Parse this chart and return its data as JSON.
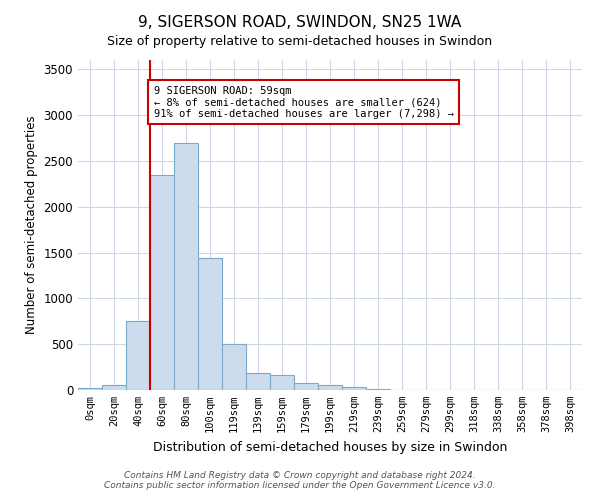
{
  "title": "9, SIGERSON ROAD, SWINDON, SN25 1WA",
  "subtitle": "Size of property relative to semi-detached houses in Swindon",
  "xlabel": "Distribution of semi-detached houses by size in Swindon",
  "ylabel": "Number of semi-detached properties",
  "bar_labels": [
    "0sqm",
    "20sqm",
    "40sqm",
    "60sqm",
    "80sqm",
    "100sqm",
    "119sqm",
    "139sqm",
    "159sqm",
    "179sqm",
    "199sqm",
    "219sqm",
    "239sqm",
    "259sqm",
    "279sqm",
    "299sqm",
    "318sqm",
    "338sqm",
    "358sqm",
    "378sqm",
    "398sqm"
  ],
  "bar_values": [
    20,
    50,
    750,
    2350,
    2700,
    1440,
    500,
    190,
    165,
    80,
    50,
    30,
    10,
    5,
    2,
    1,
    1,
    0,
    0,
    0,
    0
  ],
  "bar_color": "#ccdcec",
  "bar_edge_color": "#7aaacb",
  "vline_bar_index": 3,
  "vline_color": "#cc0000",
  "annotation_title": "9 SIGERSON ROAD: 59sqm",
  "annotation_line1": "← 8% of semi-detached houses are smaller (624)",
  "annotation_line2": "91% of semi-detached houses are larger (7,298) →",
  "annotation_box_color": "#cc0000",
  "ylim": [
    0,
    3600
  ],
  "yticks": [
    0,
    500,
    1000,
    1500,
    2000,
    2500,
    3000,
    3500
  ],
  "footer1": "Contains HM Land Registry data © Crown copyright and database right 2024.",
  "footer2": "Contains public sector information licensed under the Open Government Licence v3.0.",
  "bg_color": "#ffffff",
  "plot_bg_color": "#ffffff",
  "grid_color": "#d0d8e8"
}
